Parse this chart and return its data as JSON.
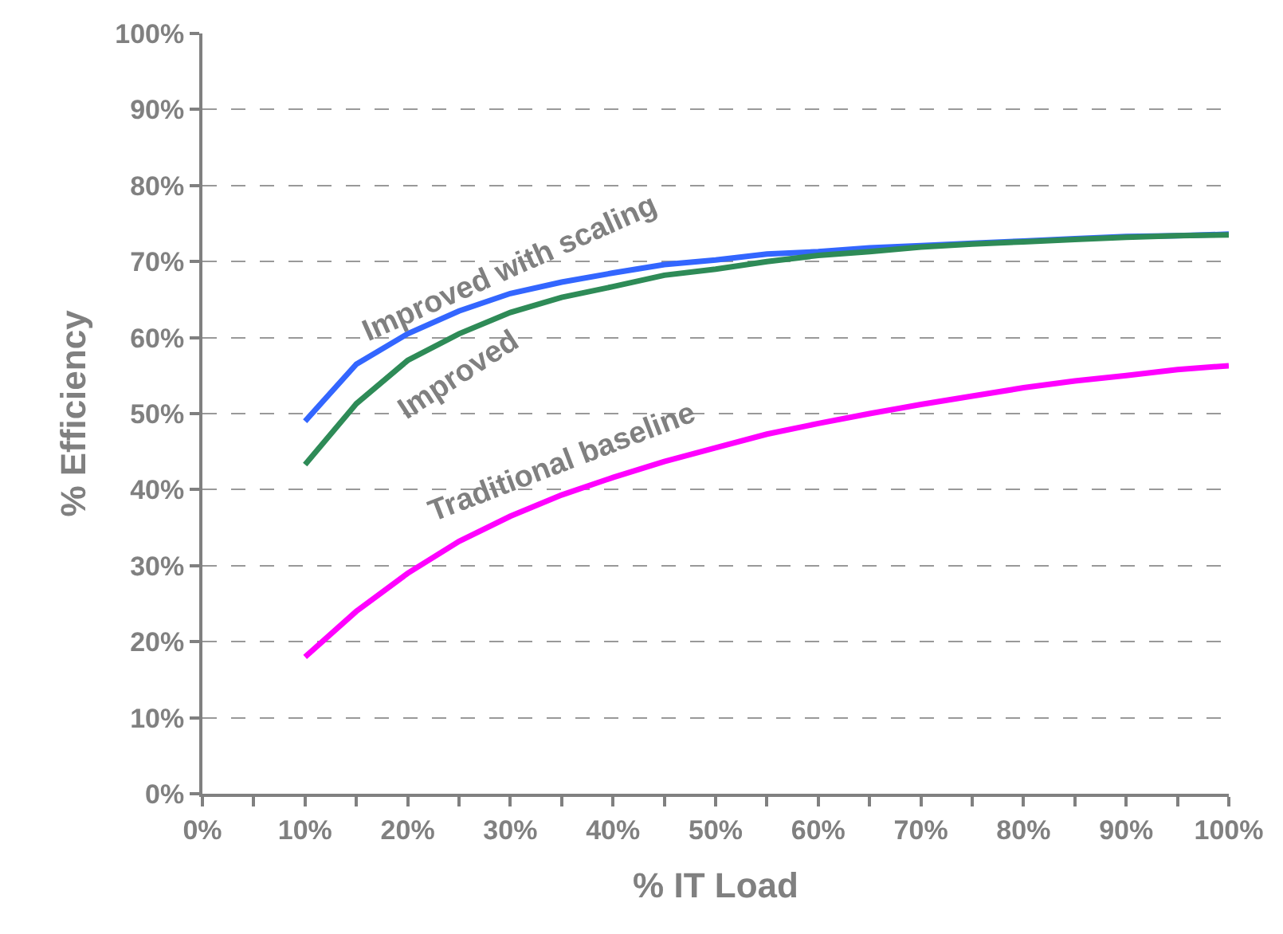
{
  "chart_data": {
    "type": "line",
    "xlabel": "% IT Load",
    "ylabel": "% Efficiency",
    "x": [
      10,
      15,
      20,
      25,
      30,
      35,
      40,
      45,
      50,
      55,
      60,
      65,
      70,
      75,
      80,
      85,
      90,
      95,
      100
    ],
    "series": [
      {
        "name": "Improved with scaling",
        "color": "#3366ff",
        "values": [
          49,
          56.5,
          60.5,
          63.5,
          65.8,
          67.3,
          68.5,
          69.6,
          70.2,
          71,
          71.3,
          71.8,
          72.1,
          72.4,
          72.7,
          73,
          73.3,
          73.4,
          73.6
        ]
      },
      {
        "name": "Improved",
        "color": "#2e8b57",
        "values": [
          43.3,
          51.3,
          57,
          60.5,
          63.3,
          65.3,
          66.7,
          68.2,
          69,
          70,
          70.8,
          71.3,
          71.9,
          72.3,
          72.6,
          72.9,
          73.2,
          73.4,
          73.5
        ]
      },
      {
        "name": "Traditional baseline",
        "color": "#ff00ff",
        "values": [
          18,
          24,
          29,
          33.2,
          36.5,
          39.3,
          41.6,
          43.7,
          45.5,
          47.3,
          48.7,
          50,
          51.2,
          52.3,
          53.4,
          54.3,
          55,
          55.8,
          56.3
        ]
      }
    ],
    "xlim": [
      0,
      100
    ],
    "xticks": [
      {
        "value": 0,
        "label": "0%"
      },
      {
        "value": 5,
        "label": null
      },
      {
        "value": 10,
        "label": "10%"
      },
      {
        "value": 15,
        "label": null
      },
      {
        "value": 20,
        "label": "20%"
      },
      {
        "value": 25,
        "label": null
      },
      {
        "value": 30,
        "label": "30%"
      },
      {
        "value": 35,
        "label": null
      },
      {
        "value": 40,
        "label": "40%"
      },
      {
        "value": 45,
        "label": null
      },
      {
        "value": 50,
        "label": "50%"
      },
      {
        "value": 55,
        "label": null
      },
      {
        "value": 60,
        "label": "60%"
      },
      {
        "value": 65,
        "label": null
      },
      {
        "value": 70,
        "label": "70%"
      },
      {
        "value": 75,
        "label": null
      },
      {
        "value": 80,
        "label": "80%"
      },
      {
        "value": 85,
        "label": null
      },
      {
        "value": 90,
        "label": "90%"
      },
      {
        "value": 95,
        "label": null
      },
      {
        "value": 100,
        "label": "100%"
      }
    ],
    "ylim": [
      0,
      100
    ],
    "yticks": [
      {
        "value": 0,
        "label": "0%"
      },
      {
        "value": 10,
        "label": "10%"
      },
      {
        "value": 20,
        "label": "20%"
      },
      {
        "value": 30,
        "label": "30%"
      },
      {
        "value": 40,
        "label": "40%"
      },
      {
        "value": 50,
        "label": "50%"
      },
      {
        "value": 60,
        "label": "60%"
      },
      {
        "value": 70,
        "label": "70%"
      },
      {
        "value": 80,
        "label": "80%"
      },
      {
        "value": 90,
        "label": "90%"
      },
      {
        "value": 100,
        "label": "100%"
      }
    ],
    "grid": "y",
    "legend": false,
    "marker": "none",
    "line_style": "solid"
  }
}
